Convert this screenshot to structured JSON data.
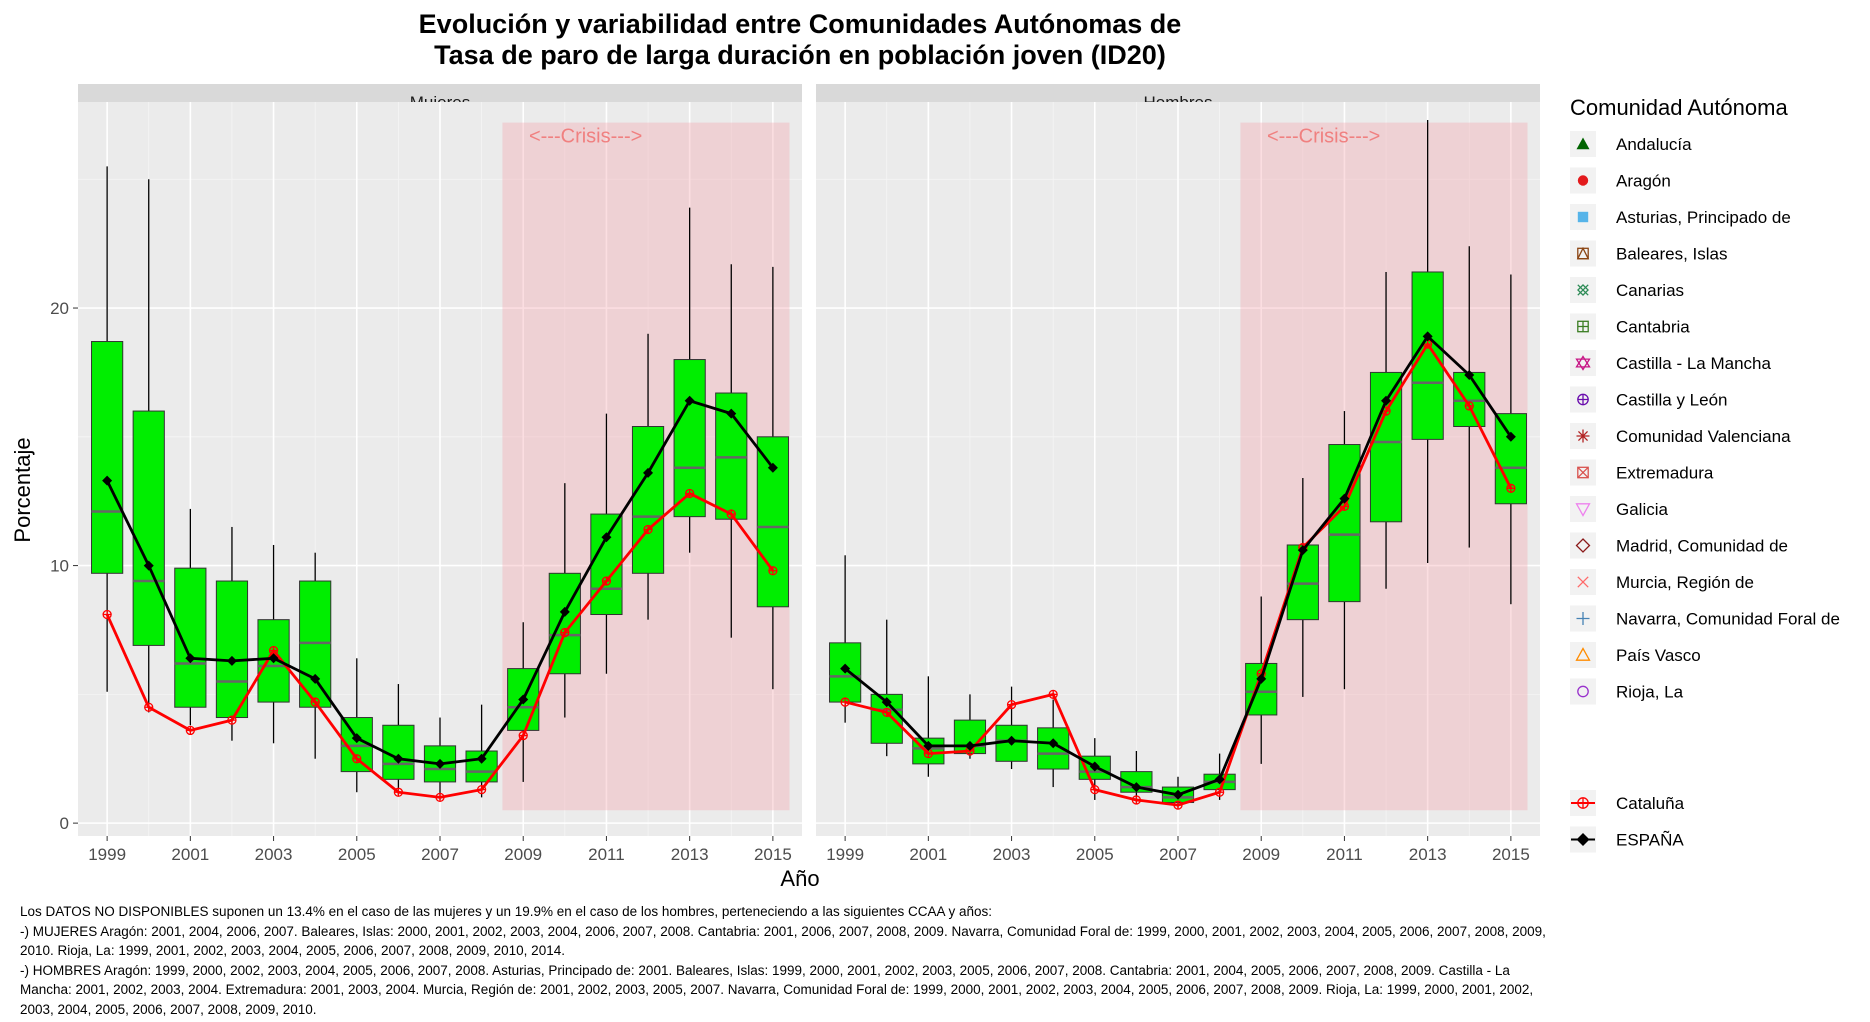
{
  "title_line1": "Evolución y variabilidad entre Comunidades Autónomas de",
  "title_line2": "Tasa de paro de larga duración en población joven (ID20)",
  "xlabel": "Año",
  "ylabel": "Porcentaje",
  "legend_title": "Comunidad Autónoma",
  "crisis_label": "<---Crisis--->",
  "footnote": [
    "Los DATOS NO DISPONIBLES suponen un 13.4% en el caso de las mujeres y un 19.9% en el caso de los hombres, perteneciendo a las siguientes CCAA y años:",
    "-) MUJERES Aragón: 2001, 2004, 2006, 2007. Baleares, Islas: 2000, 2001, 2002, 2003, 2004, 2006, 2007, 2008. Cantabria: 2001, 2006, 2007, 2008, 2009. Navarra, Comunidad Foral de: 1999, 2000, 2001, 2002, 2003, 2004, 2005, 2006, 2007, 2008, 2009, 2010. Rioja, La: 1999, 2001, 2002, 2003, 2004, 2005, 2006, 2007, 2008, 2009, 2010, 2014.",
    "-) HOMBRES Aragón: 1999, 2000, 2002, 2003, 2004, 2005, 2006, 2007, 2008. Asturias, Principado de: 2001. Baleares, Islas: 1999, 2000, 2001, 2002, 2003, 2005, 2006, 2007, 2008. Cantabria: 2001, 2004, 2005, 2006, 2007, 2008, 2009. Castilla - La Mancha: 2001, 2002, 2003, 2004. Extremadura: 2001, 2003, 2004. Murcia, Región de: 2001, 2002, 2003, 2005, 2007. Navarra, Comunidad Foral de: 1999, 2000, 2001, 2002, 2003, 2004, 2005, 2006, 2007, 2008, 2009. Rioja, La: 1999, 2000, 2001, 2002, 2003, 2004, 2005, 2006, 2007, 2008, 2009, 2010."
  ],
  "colors": {
    "panel_bg": "#ebebeb",
    "strip_bg": "#d9d9d9",
    "grid": "#ffffff",
    "box_fill": "#00ee00",
    "crisis_fill": "#f4a0a8",
    "espana_line": "#000000",
    "cataluna_line": "#ff0000"
  },
  "legend": {
    "items": [
      {
        "name": "Andalucía",
        "shape": "triangle-filled",
        "color": "#006400"
      },
      {
        "name": "Aragón",
        "shape": "circle-filled",
        "color": "#e31a1c"
      },
      {
        "name": "Asturias, Principado de",
        "shape": "square-filled",
        "color": "#56b4e9"
      },
      {
        "name": "Baleares, Islas",
        "shape": "square-triangle",
        "color": "#8b4513"
      },
      {
        "name": "Canarias",
        "shape": "square-cross",
        "color": "#2e8b57"
      },
      {
        "name": "Cantabria",
        "shape": "square-plus",
        "color": "#3a7d22"
      },
      {
        "name": "Castilla - La Mancha",
        "shape": "star-of-david",
        "color": "#c71585"
      },
      {
        "name": "Castilla y León",
        "shape": "circle-plus",
        "color": "#6a0dad"
      },
      {
        "name": "Comunidad Valenciana",
        "shape": "asterisk",
        "color": "#b22222"
      },
      {
        "name": "Extremadura",
        "shape": "square-x",
        "color": "#d9534f"
      },
      {
        "name": "Galicia",
        "shape": "triangle-down-open",
        "color": "#ee82ee"
      },
      {
        "name": "Madrid, Comunidad de",
        "shape": "diamond-open",
        "color": "#8b1a1a"
      },
      {
        "name": "Murcia, Región de",
        "shape": "x",
        "color": "#ff6a6a"
      },
      {
        "name": "Navarra, Comunidad Foral de",
        "shape": "plus",
        "color": "#4682b4"
      },
      {
        "name": "País Vasco",
        "shape": "triangle-open",
        "color": "#ff8c00"
      },
      {
        "name": "Rioja, La",
        "shape": "circle-open",
        "color": "#9932cc"
      }
    ],
    "extra": [
      {
        "name": "Cataluña",
        "shape": "circle-plus",
        "color": "#ff0000",
        "line": true
      },
      {
        "name": "ESPAÑA",
        "shape": "diamond-filled",
        "color": "#000000",
        "line": true
      }
    ]
  },
  "chart_data": {
    "type": "box",
    "x": [
      1999,
      2000,
      2001,
      2002,
      2003,
      2004,
      2005,
      2006,
      2007,
      2008,
      2009,
      2010,
      2011,
      2012,
      2013,
      2014,
      2015
    ],
    "x_ticks": [
      1999,
      2001,
      2003,
      2005,
      2007,
      2009,
      2011,
      2013,
      2015
    ],
    "y_ticks": [
      0,
      10,
      20
    ],
    "ylim": [
      -0.5,
      28
    ],
    "crisis_range": [
      2008.5,
      2015.4
    ],
    "panels": [
      {
        "name": "Mujeres",
        "boxes": [
          {
            "year": 1999,
            "q1": 9.7,
            "median": 12.1,
            "q3": 18.7,
            "lower": 5.1,
            "upper": 25.5
          },
          {
            "year": 2000,
            "q1": 6.9,
            "median": 9.4,
            "q3": 16.0,
            "lower": 4.3,
            "upper": 25.0
          },
          {
            "year": 2001,
            "q1": 4.5,
            "median": 6.2,
            "q3": 9.9,
            "lower": 3.8,
            "upper": 12.2
          },
          {
            "year": 2002,
            "q1": 4.1,
            "median": 5.5,
            "q3": 9.4,
            "lower": 3.2,
            "upper": 11.5
          },
          {
            "year": 2003,
            "q1": 4.7,
            "median": 6.1,
            "q3": 7.9,
            "lower": 3.1,
            "upper": 10.8
          },
          {
            "year": 2004,
            "q1": 4.5,
            "median": 7.0,
            "q3": 9.4,
            "lower": 2.5,
            "upper": 10.5
          },
          {
            "year": 2005,
            "q1": 2.0,
            "median": 3.0,
            "q3": 4.1,
            "lower": 1.2,
            "upper": 6.4
          },
          {
            "year": 2006,
            "q1": 1.7,
            "median": 2.3,
            "q3": 3.8,
            "lower": 1.1,
            "upper": 5.4
          },
          {
            "year": 2007,
            "q1": 1.6,
            "median": 2.1,
            "q3": 3.0,
            "lower": 0.9,
            "upper": 4.1
          },
          {
            "year": 2008,
            "q1": 1.6,
            "median": 2.0,
            "q3": 2.8,
            "lower": 1.0,
            "upper": 4.6
          },
          {
            "year": 2009,
            "q1": 3.6,
            "median": 4.5,
            "q3": 6.0,
            "lower": 1.6,
            "upper": 7.8
          },
          {
            "year": 2010,
            "q1": 5.8,
            "median": 7.3,
            "q3": 9.7,
            "lower": 4.1,
            "upper": 13.2
          },
          {
            "year": 2011,
            "q1": 8.1,
            "median": 9.1,
            "q3": 12.0,
            "lower": 5.8,
            "upper": 15.9
          },
          {
            "year": 2012,
            "q1": 9.7,
            "median": 11.9,
            "q3": 15.4,
            "lower": 7.9,
            "upper": 19.0
          },
          {
            "year": 2013,
            "q1": 11.9,
            "median": 13.8,
            "q3": 18.0,
            "lower": 10.5,
            "upper": 23.9
          },
          {
            "year": 2014,
            "q1": 11.8,
            "median": 14.2,
            "q3": 16.7,
            "lower": 7.2,
            "upper": 21.7
          },
          {
            "year": 2015,
            "q1": 8.4,
            "median": 11.5,
            "q3": 15.0,
            "lower": 5.2,
            "upper": 21.6
          }
        ],
        "espana": [
          13.3,
          10.0,
          6.4,
          6.3,
          6.4,
          5.6,
          3.3,
          2.5,
          2.3,
          2.5,
          4.8,
          8.2,
          11.1,
          13.6,
          16.4,
          15.9,
          13.8
        ],
        "cataluna": [
          8.1,
          4.5,
          3.6,
          4.0,
          6.7,
          4.7,
          2.5,
          1.2,
          1.0,
          1.3,
          3.4,
          7.4,
          9.4,
          11.4,
          12.8,
          12.0,
          9.8
        ]
      },
      {
        "name": "Hombres",
        "boxes": [
          {
            "year": 1999,
            "q1": 4.7,
            "median": 5.7,
            "q3": 7.0,
            "lower": 3.9,
            "upper": 10.4
          },
          {
            "year": 2000,
            "q1": 3.1,
            "median": 4.4,
            "q3": 5.0,
            "lower": 2.6,
            "upper": 7.9
          },
          {
            "year": 2001,
            "q1": 2.3,
            "median": 2.9,
            "q3": 3.3,
            "lower": 1.8,
            "upper": 5.7
          },
          {
            "year": 2002,
            "q1": 2.7,
            "median": 3.0,
            "q3": 4.0,
            "lower": 2.5,
            "upper": 5.0
          },
          {
            "year": 2003,
            "q1": 2.4,
            "median": 3.2,
            "q3": 3.8,
            "lower": 2.1,
            "upper": 5.3
          },
          {
            "year": 2004,
            "q1": 2.1,
            "median": 2.7,
            "q3": 3.7,
            "lower": 1.4,
            "upper": 4.8
          },
          {
            "year": 2005,
            "q1": 1.7,
            "median": 2.0,
            "q3": 2.6,
            "lower": 0.9,
            "upper": 3.3
          },
          {
            "year": 2006,
            "q1": 1.2,
            "median": 1.4,
            "q3": 2.0,
            "lower": 0.8,
            "upper": 2.8
          },
          {
            "year": 2007,
            "q1": 0.8,
            "median": 1.0,
            "q3": 1.4,
            "lower": 0.6,
            "upper": 1.8
          },
          {
            "year": 2008,
            "q1": 1.3,
            "median": 1.6,
            "q3": 1.9,
            "lower": 0.9,
            "upper": 2.7
          },
          {
            "year": 2009,
            "q1": 4.2,
            "median": 5.1,
            "q3": 6.2,
            "lower": 2.3,
            "upper": 8.8
          },
          {
            "year": 2010,
            "q1": 7.9,
            "median": 9.3,
            "q3": 10.8,
            "lower": 4.9,
            "upper": 13.4
          },
          {
            "year": 2011,
            "q1": 8.6,
            "median": 11.2,
            "q3": 14.7,
            "lower": 5.2,
            "upper": 16.0
          },
          {
            "year": 2012,
            "q1": 11.7,
            "median": 14.8,
            "q3": 17.5,
            "lower": 9.1,
            "upper": 21.4
          },
          {
            "year": 2013,
            "q1": 14.9,
            "median": 17.1,
            "q3": 21.4,
            "lower": 10.1,
            "upper": 27.3
          },
          {
            "year": 2014,
            "q1": 15.4,
            "median": 16.4,
            "q3": 17.5,
            "lower": 10.7,
            "upper": 22.4
          },
          {
            "year": 2015,
            "q1": 12.4,
            "median": 13.8,
            "q3": 15.9,
            "lower": 8.5,
            "upper": 21.3
          }
        ],
        "espana": [
          6.0,
          4.7,
          3.0,
          3.0,
          3.2,
          3.1,
          2.2,
          1.4,
          1.1,
          1.7,
          5.6,
          10.6,
          12.6,
          16.4,
          18.9,
          17.4,
          15.0
        ],
        "cataluna": [
          4.7,
          4.3,
          2.7,
          2.8,
          4.6,
          5.0,
          1.3,
          0.9,
          0.7,
          1.2,
          5.8,
          10.7,
          12.3,
          16.0,
          18.6,
          16.2,
          13.0
        ]
      }
    ]
  }
}
